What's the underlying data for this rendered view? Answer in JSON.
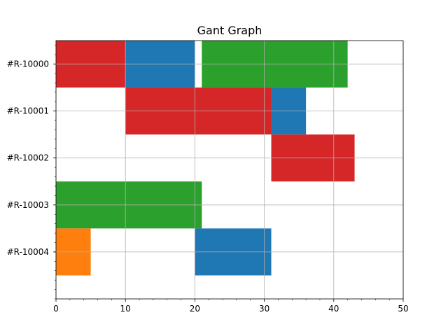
{
  "chart_data": {
    "type": "gantt",
    "title": "Gant Graph",
    "xlabel": "",
    "ylabel": "",
    "xlim": [
      0,
      50
    ],
    "ylim": [
      -1,
      4.5
    ],
    "x_ticks": [
      0,
      10,
      20,
      30,
      40,
      50
    ],
    "x_minor_step": 2,
    "y_minor_step": 0.2,
    "grid": true,
    "rows": [
      "#R-10000",
      "#R-10001",
      "#R-10002",
      "#R-10003",
      "#R-10004"
    ],
    "colors": {
      "blue": "#1f77b4",
      "orange": "#ff7f0e",
      "green": "#2ca02c",
      "red": "#d62728"
    },
    "tasks": [
      {
        "row": "#R-10000",
        "start": 0,
        "end": 10,
        "color": "red"
      },
      {
        "row": "#R-10000",
        "start": 10,
        "end": 20,
        "color": "blue"
      },
      {
        "row": "#R-10000",
        "start": 21,
        "end": 42,
        "color": "green"
      },
      {
        "row": "#R-10001",
        "start": 10,
        "end": 31,
        "color": "red"
      },
      {
        "row": "#R-10001",
        "start": 31,
        "end": 36,
        "color": "blue"
      },
      {
        "row": "#R-10002",
        "start": 31,
        "end": 43,
        "color": "red"
      },
      {
        "row": "#R-10003",
        "start": 0,
        "end": 21,
        "color": "green"
      },
      {
        "row": "#R-10004",
        "start": 0,
        "end": 5,
        "color": "orange"
      },
      {
        "row": "#R-10004",
        "start": 20,
        "end": 31,
        "color": "blue"
      }
    ]
  }
}
